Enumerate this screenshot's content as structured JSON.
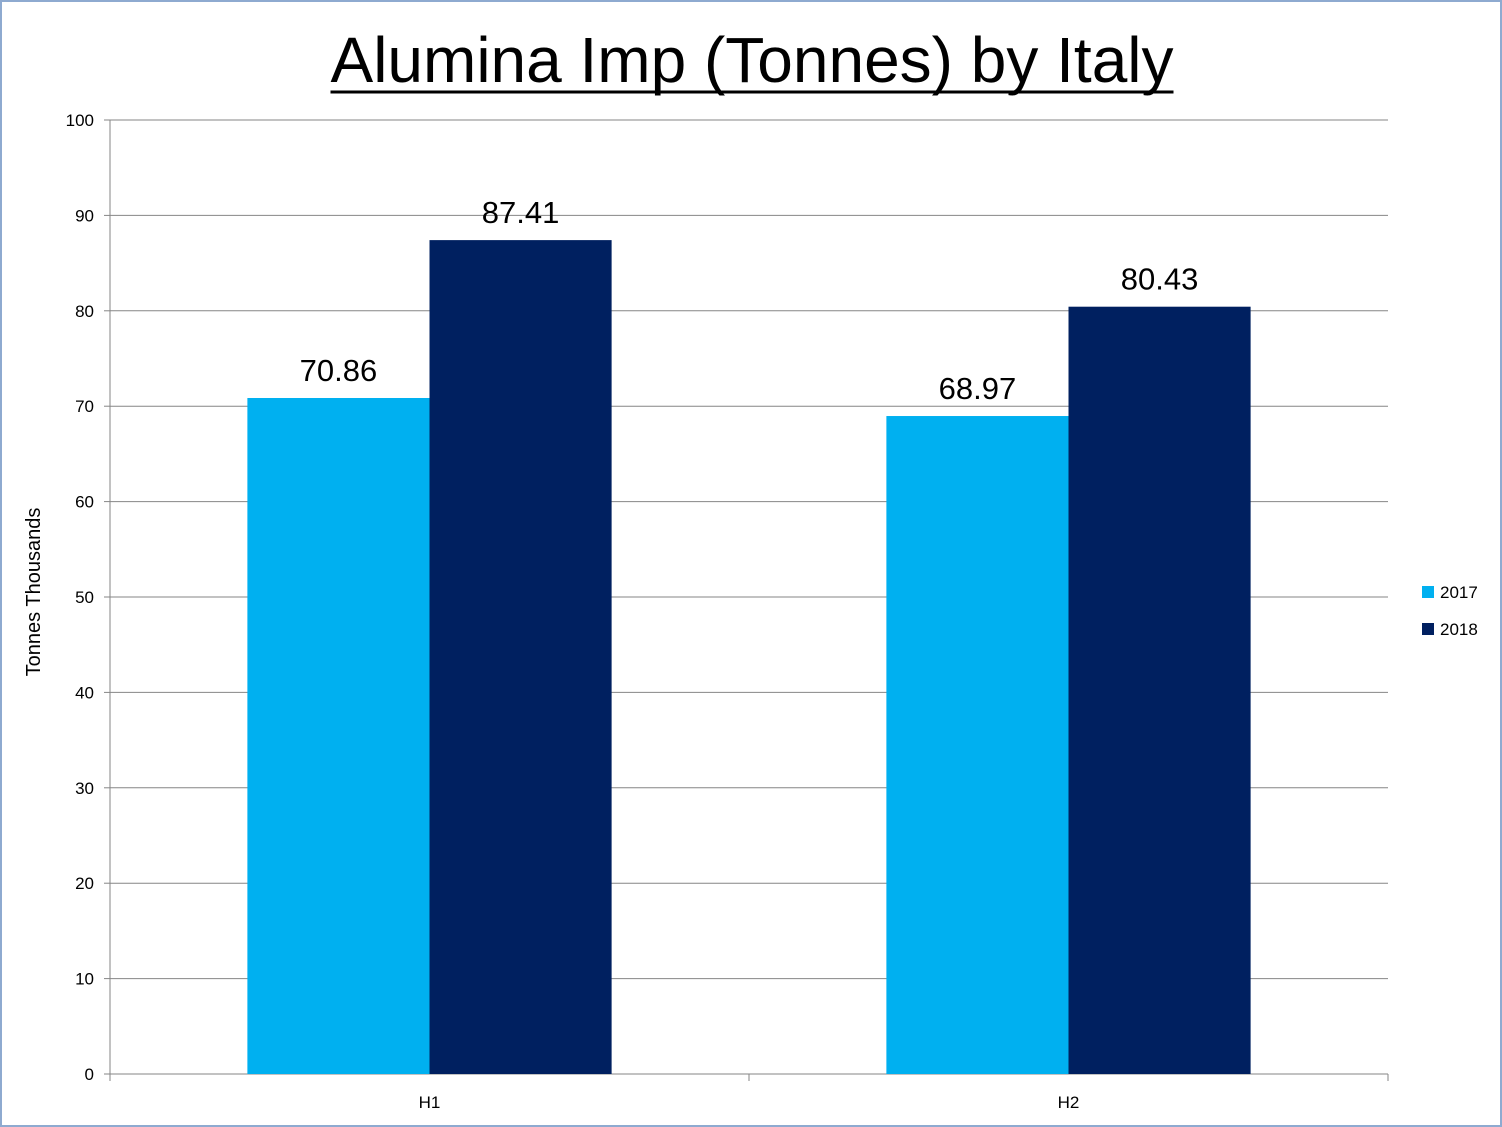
{
  "chart_data": {
    "type": "bar",
    "title": "Alumina Imp (Tonnes) by Italy",
    "ylabel": "Tonnes Thousands",
    "xlabel": "",
    "categories": [
      "H1",
      "H2"
    ],
    "series": [
      {
        "name": "2017",
        "values": [
          70.86,
          68.97
        ],
        "color": "#00b0f0"
      },
      {
        "name": "2018",
        "values": [
          87.41,
          80.43
        ],
        "color": "#002060"
      }
    ],
    "ylim": [
      0,
      100
    ],
    "yticks": [
      0,
      10,
      20,
      30,
      40,
      50,
      60,
      70,
      80,
      90,
      100
    ],
    "grid": true,
    "legend_position": "right"
  }
}
